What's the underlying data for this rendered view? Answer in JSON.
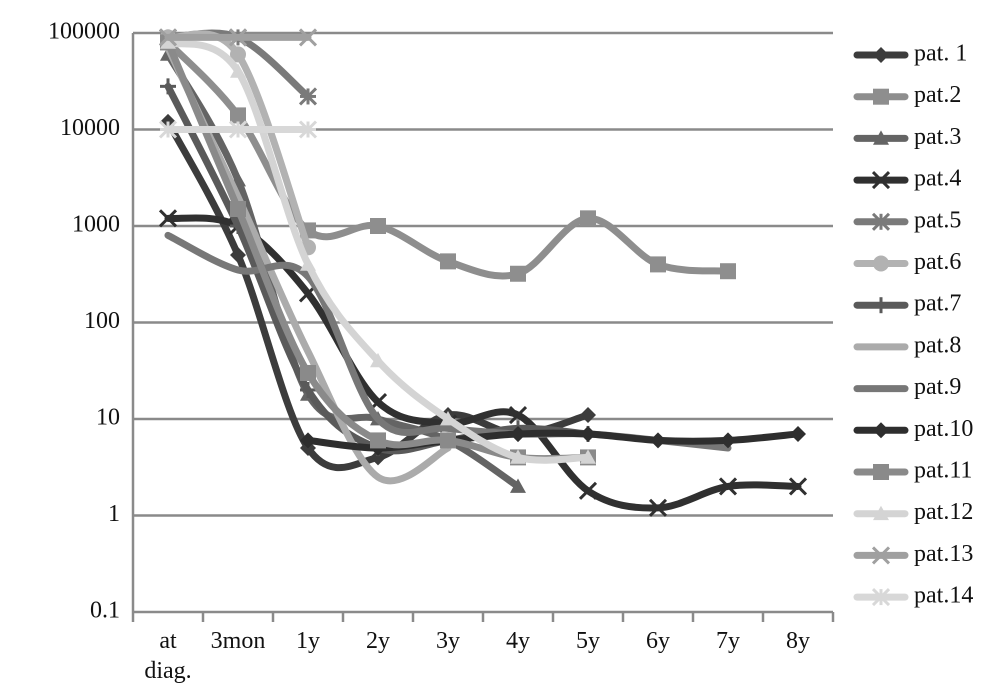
{
  "chart_data": {
    "type": "line",
    "log_scale": true,
    "grid": true,
    "categories": [
      "at diag.",
      "3mon",
      "1y",
      "2y",
      "3y",
      "4y",
      "5y",
      "6y",
      "7y",
      "8y"
    ],
    "ylim": [
      0.1,
      100000
    ],
    "yticks": [
      0.1,
      1,
      10,
      100,
      1000,
      10000,
      100000
    ],
    "series": [
      {
        "name": "pat. 1",
        "color": "#3c3c3c",
        "marker": "diamond",
        "values": [
          12000,
          500,
          5,
          4,
          11,
          7,
          11,
          null,
          null,
          null
        ]
      },
      {
        "name": "pat.2",
        "color": "#8e8e8e",
        "marker": "square",
        "values": [
          80000,
          14000,
          900,
          1000,
          430,
          320,
          1200,
          400,
          340,
          null
        ]
      },
      {
        "name": "pat.3",
        "color": "#646464",
        "marker": "triangle",
        "values": [
          60000,
          3000,
          18,
          10,
          6,
          2,
          null,
          null,
          null,
          null
        ]
      },
      {
        "name": "pat.4",
        "color": "#303030",
        "marker": "x",
        "values": [
          1200,
          1000,
          200,
          15,
          9,
          11,
          1.8,
          1.2,
          2,
          2
        ]
      },
      {
        "name": "pat.5",
        "color": "#7a7a7a",
        "marker": "asterisk",
        "values": [
          90000,
          90000,
          22000,
          null,
          null,
          null,
          null,
          null,
          null,
          null
        ]
      },
      {
        "name": "pat.6",
        "color": "#b2b2b2",
        "marker": "circle",
        "values": [
          90000,
          60000,
          600,
          null,
          null,
          null,
          null,
          null,
          null,
          null
        ]
      },
      {
        "name": "pat.7",
        "color": "#5a5a5a",
        "marker": "plus",
        "values": [
          28000,
          1000,
          20,
          5,
          6,
          8,
          7,
          null,
          null,
          null
        ]
      },
      {
        "name": "pat.8",
        "color": "#ababab",
        "marker": "none",
        "values": [
          70000,
          2000,
          50,
          2.5,
          5,
          null,
          null,
          null,
          null,
          null
        ]
      },
      {
        "name": "pat.9",
        "color": "#777777",
        "marker": "none",
        "values": [
          800,
          350,
          300,
          10,
          8,
          7,
          7,
          6,
          5,
          null
        ]
      },
      {
        "name": "pat.10",
        "color": "#2e2e2e",
        "marker": "diamond",
        "values": [
          null,
          null,
          6,
          5,
          6,
          7,
          7,
          6,
          6,
          7
        ]
      },
      {
        "name": "pat.11",
        "color": "#8a8a8a",
        "marker": "square",
        "values": [
          80000,
          1500,
          30,
          6,
          6,
          4,
          4,
          null,
          null,
          null
        ]
      },
      {
        "name": "pat.12",
        "color": "#d4d4d4",
        "marker": "triangle",
        "values": [
          80000,
          40000,
          400,
          40,
          10,
          4,
          4,
          null,
          null,
          null
        ]
      },
      {
        "name": "pat.13",
        "color": "#a0a0a0",
        "marker": "x",
        "values": [
          90000,
          90000,
          90000,
          null,
          null,
          null,
          null,
          null,
          null,
          null
        ]
      },
      {
        "name": "pat.14",
        "color": "#d8d8d8",
        "marker": "asterisk",
        "values": [
          10000,
          10000,
          10000,
          null,
          null,
          null,
          null,
          null,
          null,
          null
        ]
      }
    ]
  }
}
